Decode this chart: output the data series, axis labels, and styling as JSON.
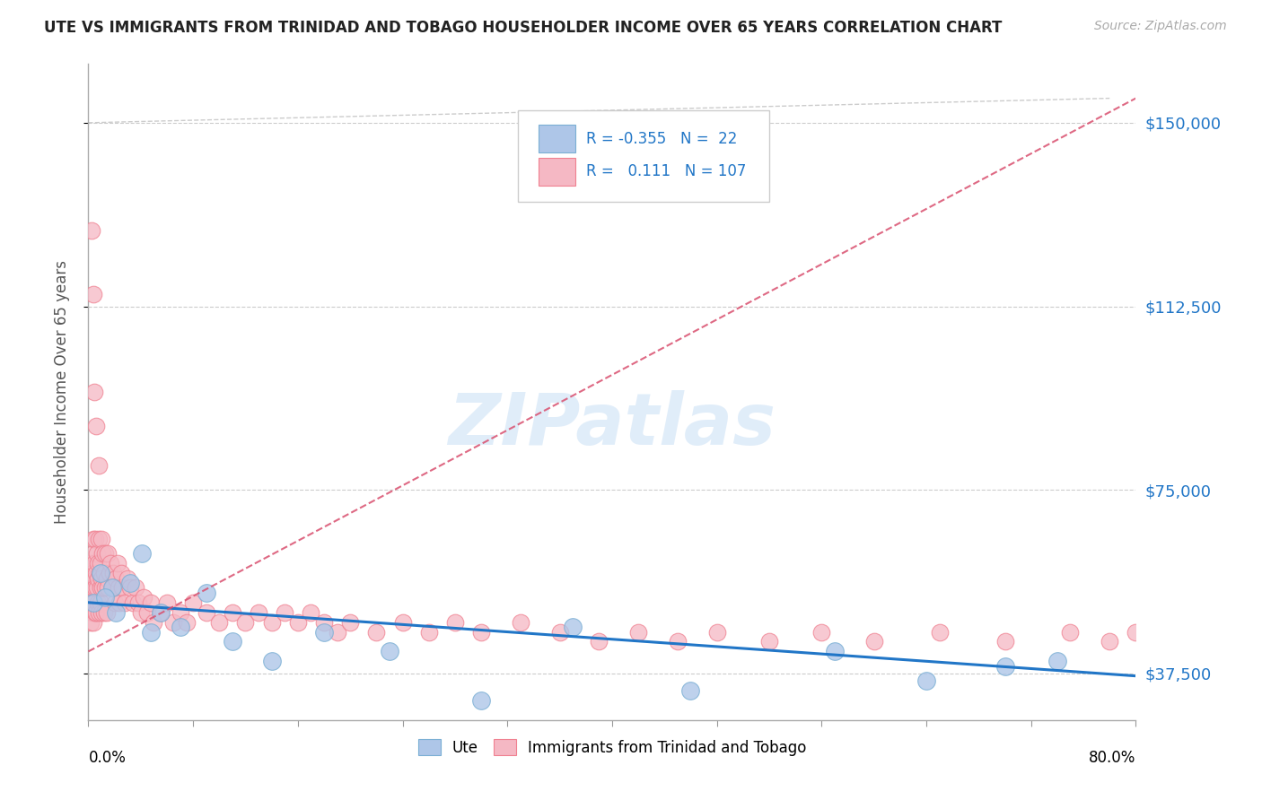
{
  "title": "UTE VS IMMIGRANTS FROM TRINIDAD AND TOBAGO HOUSEHOLDER INCOME OVER 65 YEARS CORRELATION CHART",
  "source_text": "Source: ZipAtlas.com",
  "ylabel": "Householder Income Over 65 years",
  "watermark": "ZIPatlas",
  "legend_r_ute": "-0.355",
  "legend_n_ute": "22",
  "legend_r_tt": "0.111",
  "legend_n_tt": "107",
  "xlim": [
    0.0,
    80.0
  ],
  "ylim": [
    28000,
    162000
  ],
  "yticks": [
    37500,
    75000,
    112500,
    150000
  ],
  "ytick_labels": [
    "$37,500",
    "$75,000",
    "$112,500",
    "$150,000"
  ],
  "ute_fill_color": "#aec6e8",
  "tt_fill_color": "#f5b8c4",
  "ute_edge_color": "#7aafd4",
  "tt_edge_color": "#f08090",
  "ute_line_color": "#2176c7",
  "tt_line_color": "#d94f6e",
  "grid_color": "#cccccc",
  "background_color": "#ffffff",
  "ylabel_color": "#555555",
  "ytick_color": "#2176c7",
  "title_color": "#222222",
  "source_color": "#aaaaaa",
  "watermark_color": "#c8dff5",
  "ute_x": [
    0.4,
    0.9,
    1.8,
    2.1,
    3.2,
    4.1,
    5.5,
    7.0,
    9.0,
    11.0,
    14.0,
    18.0,
    23.0,
    30.0,
    37.0,
    46.0,
    57.0,
    64.0,
    70.0,
    74.0,
    1.3,
    4.8
  ],
  "ute_y": [
    52000,
    58000,
    55000,
    50000,
    56000,
    62000,
    50000,
    47000,
    54000,
    44000,
    40000,
    46000,
    42000,
    32000,
    47000,
    34000,
    42000,
    36000,
    39000,
    40000,
    53000,
    46000
  ],
  "tt_cluster_x": [
    0.1,
    0.15,
    0.2,
    0.2,
    0.25,
    0.3,
    0.3,
    0.35,
    0.35,
    0.4,
    0.4,
    0.45,
    0.45,
    0.5,
    0.5,
    0.55,
    0.55,
    0.6,
    0.6,
    0.65,
    0.65,
    0.7,
    0.7,
    0.75,
    0.8,
    0.8,
    0.85,
    0.9,
    0.9,
    0.95,
    1.0,
    1.0,
    1.0,
    1.1,
    1.1,
    1.2,
    1.2,
    1.3,
    1.3,
    1.4,
    1.4,
    1.5,
    1.5,
    1.6,
    1.7,
    1.8,
    1.9,
    2.0,
    2.1,
    2.2,
    2.3,
    2.4,
    2.5,
    2.6,
    2.8,
    3.0,
    3.2,
    3.4,
    3.6,
    3.8,
    4.0,
    4.2,
    4.5,
    4.8,
    5.0,
    5.5,
    6.0,
    6.5,
    7.0,
    7.5,
    8.0,
    9.0,
    10.0,
    11.0,
    12.0,
    13.0,
    14.0,
    15.0,
    16.0,
    17.0,
    18.0,
    19.0,
    20.0,
    22.0,
    24.0,
    26.0,
    28.0,
    30.0,
    33.0,
    36.0,
    39.0,
    42.0,
    45.0,
    48.0,
    52.0,
    56.0,
    60.0,
    65.0,
    70.0,
    75.0,
    78.0,
    80.0,
    0.25,
    0.35,
    0.45,
    0.6,
    0.8
  ],
  "tt_cluster_y": [
    57000,
    52000,
    60000,
    48000,
    55000,
    58000,
    50000,
    62000,
    48000,
    55000,
    65000,
    52000,
    60000,
    57000,
    50000,
    65000,
    55000,
    58000,
    50000,
    62000,
    55000,
    60000,
    52000,
    57000,
    65000,
    50000,
    58000,
    60000,
    52000,
    55000,
    65000,
    57000,
    50000,
    62000,
    55000,
    58000,
    50000,
    62000,
    55000,
    57000,
    50000,
    62000,
    55000,
    58000,
    60000,
    55000,
    58000,
    52000,
    57000,
    60000,
    55000,
    52000,
    58000,
    55000,
    52000,
    57000,
    55000,
    52000,
    55000,
    52000,
    50000,
    53000,
    50000,
    52000,
    48000,
    50000,
    52000,
    48000,
    50000,
    48000,
    52000,
    50000,
    48000,
    50000,
    48000,
    50000,
    48000,
    50000,
    48000,
    50000,
    48000,
    46000,
    48000,
    46000,
    48000,
    46000,
    48000,
    46000,
    48000,
    46000,
    44000,
    46000,
    44000,
    46000,
    44000,
    46000,
    44000,
    46000,
    44000,
    46000,
    44000,
    46000,
    128000,
    115000,
    95000,
    88000,
    80000
  ],
  "diag_line_x": [
    2,
    78
  ],
  "diag_line_y": [
    155000,
    155000
  ],
  "ute_trend_x0": 0,
  "ute_trend_y0": 52000,
  "ute_trend_x1": 80,
  "ute_trend_y1": 37000,
  "tt_trend_x0": 0,
  "tt_trend_y0": 42000,
  "tt_trend_x1": 80,
  "tt_trend_y1": 155000
}
